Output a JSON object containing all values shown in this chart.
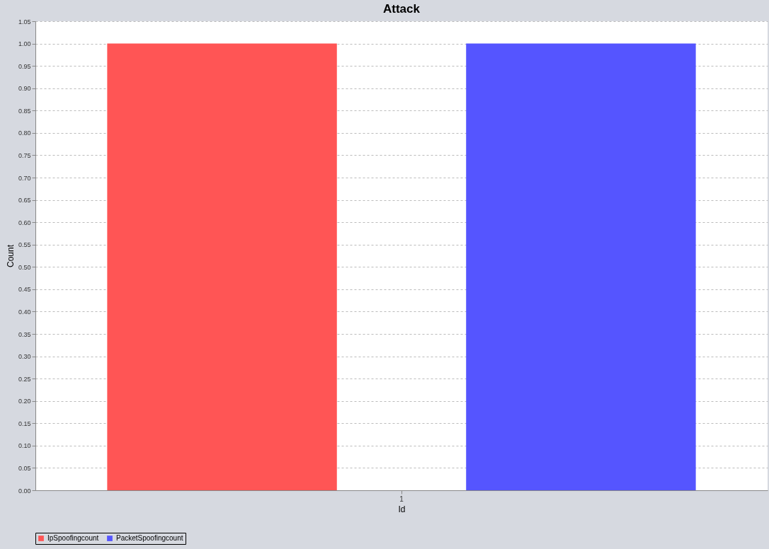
{
  "chart_data": {
    "type": "bar",
    "title": "Attack",
    "xlabel": "Id",
    "ylabel": "Count",
    "categories": [
      "1"
    ],
    "series": [
      {
        "name": "IpSpoofingcount",
        "color": "#ff5555",
        "values": [
          1.0
        ]
      },
      {
        "name": "PacketSpoofingcount",
        "color": "#5555ff",
        "values": [
          1.0
        ]
      }
    ],
    "ylim": [
      0,
      1.05
    ],
    "yticks": [
      {
        "value": 0,
        "label": "0.00"
      },
      {
        "value": 0.05,
        "label": "0.05"
      },
      {
        "value": 0.1,
        "label": "0.10"
      },
      {
        "value": 0.15,
        "label": "0.15"
      },
      {
        "value": 0.2,
        "label": "0.20"
      },
      {
        "value": 0.25,
        "label": "0.25"
      },
      {
        "value": 0.3,
        "label": "0.30"
      },
      {
        "value": 0.35,
        "label": "0.35"
      },
      {
        "value": 0.4,
        "label": "0.40"
      },
      {
        "value": 0.45,
        "label": "0.45"
      },
      {
        "value": 0.5,
        "label": "0.50"
      },
      {
        "value": 0.55,
        "label": "0.55"
      },
      {
        "value": 0.6,
        "label": "0.60"
      },
      {
        "value": 0.65,
        "label": "0.65"
      },
      {
        "value": 0.7,
        "label": "0.70"
      },
      {
        "value": 0.75,
        "label": "0.75"
      },
      {
        "value": 0.8,
        "label": "0.80"
      },
      {
        "value": 0.85,
        "label": "0.85"
      },
      {
        "value": 0.9,
        "label": "0.90"
      },
      {
        "value": 0.95,
        "label": "0.95"
      },
      {
        "value": 1.0,
        "label": "1.00"
      },
      {
        "value": 1.05,
        "label": "1.05"
      }
    ],
    "grid": "y",
    "legend": "bottom"
  }
}
